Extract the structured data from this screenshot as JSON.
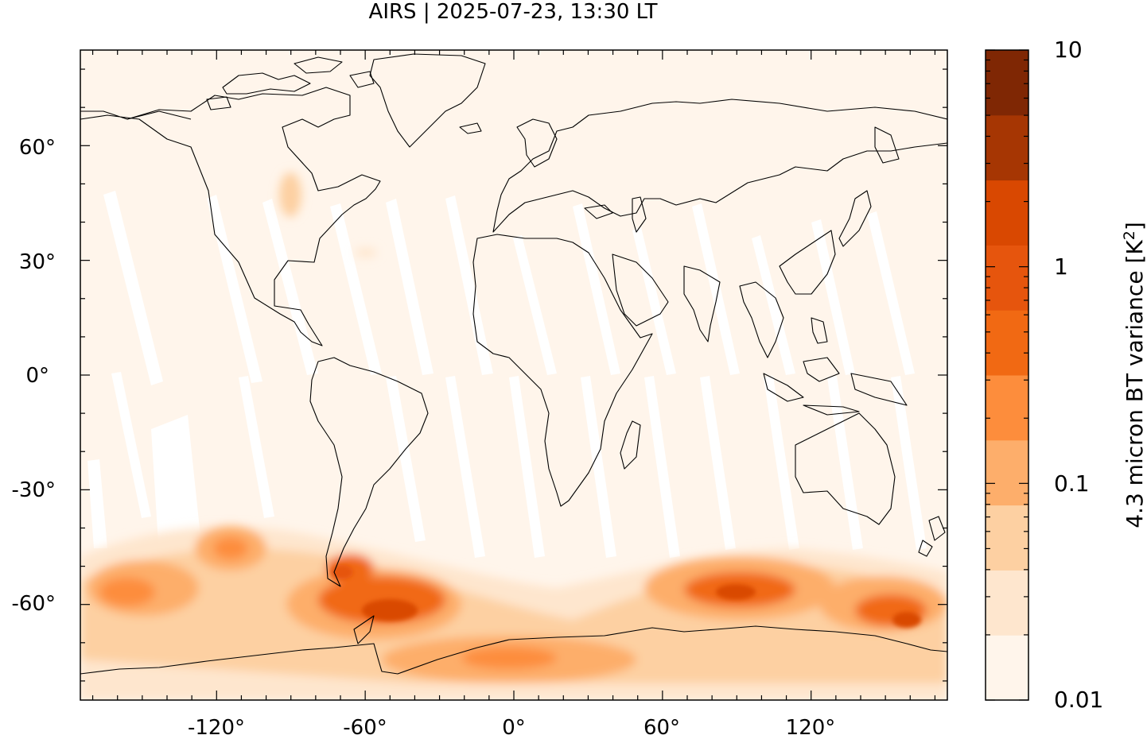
{
  "title": "AIRS | 2025-07-23, 13:30 LT",
  "map": {
    "x_ticks": [
      "-120°",
      "-60°",
      "0°",
      "60°",
      "120°"
    ],
    "y_ticks": [
      "60°",
      "30°",
      "0°",
      "-30°",
      "-60°"
    ],
    "x_tick_values": [
      -120,
      -60,
      0,
      60,
      120
    ],
    "y_tick_values": [
      60,
      30,
      0,
      -30,
      -60
    ],
    "lon_range": [
      -175,
      175
    ],
    "lat_range": [
      -85,
      85
    ],
    "no_data_color": "#ffffff",
    "coastline_color": "#000000"
  },
  "colorbar": {
    "label": "4.3 micron BT variance [K",
    "label_sup": "2",
    "label_close": "]",
    "tick_labels": [
      "10",
      "1",
      "0.1",
      "0.01"
    ],
    "scale": "log",
    "range": [
      0.01,
      10
    ],
    "colors": [
      "#fff5eb",
      "#fee6ce",
      "#fdd0a2",
      "#fdae6b",
      "#fd8d3c",
      "#f16913",
      "#e6550d",
      "#d94801",
      "#a63603",
      "#7f2704"
    ]
  }
}
